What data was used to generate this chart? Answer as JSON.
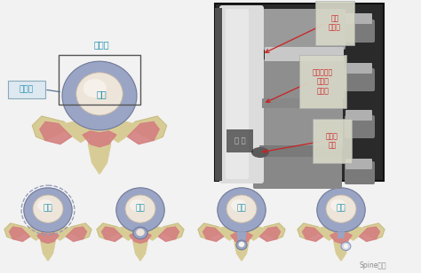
{
  "bg_color": "#f2f2f2",
  "annulus_label": "纤维环",
  "nucleus_label": "髓核",
  "disc_label": "椎间盘",
  "mri_normal": "正常\n椎间盘",
  "mri_bulging": "椎间盘膨出\n退变的\n椎间盘",
  "mri_herniated": "椎间盘\n突出",
  "mri_vertebral": "椎 体",
  "bottom_labels": [
    "膨出",
    "突出",
    "脱出",
    "游离"
  ],
  "watermark": "Spine脊柱",
  "col_outer": "#b0b8d0",
  "col_outer_light": "#d0d5e8",
  "col_annulus": "#9aa5c5",
  "col_nucleus": "#ede5da",
  "col_nucleus_highlight": "#f8f4ee",
  "col_bone": "#d8cc96",
  "col_bone_dark": "#c4b882",
  "col_muscle": "#d48080",
  "col_muscle_light": "#e8a0a0",
  "col_text_blue": "#2090b0",
  "col_text_red": "#cc2020",
  "col_arrow": "#cc2020",
  "col_box": "#666666",
  "col_mri_bg": "#1a1a1a",
  "col_mri_label_bg": "#d8d8c8"
}
